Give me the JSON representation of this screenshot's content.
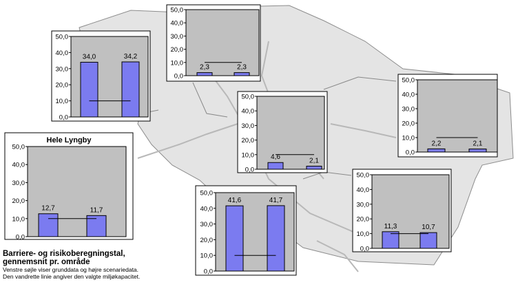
{
  "colors": {
    "bar": "#7b7bf0",
    "plot_area": "#c0c0c0",
    "frame": "#ffffff",
    "map": "#e4e4e4",
    "road": "#b8b8b8"
  },
  "chart_data": [
    {
      "type": "bar",
      "id": "hele-lyngby",
      "title": "Hele Lyngby",
      "categories": [
        "",
        ""
      ],
      "values": [
        12.7,
        11.7
      ],
      "labels": [
        "12,7",
        "11,7"
      ],
      "threshold": 10.0,
      "ylim": [
        0,
        50
      ],
      "yticks": [
        "0,0",
        "10,0",
        "20,0",
        "30,0",
        "40,0",
        "50,0"
      ]
    },
    {
      "type": "bar",
      "id": "area-west",
      "title": "",
      "categories": [
        "",
        ""
      ],
      "values": [
        34.0,
        34.2
      ],
      "labels": [
        "34,0",
        "34,2"
      ],
      "threshold": 10.0,
      "ylim": [
        0,
        50
      ],
      "yticks": [
        "0,0",
        "10,0",
        "20,0",
        "30,0",
        "40,0",
        "50,0"
      ]
    },
    {
      "type": "bar",
      "id": "area-north",
      "title": "",
      "categories": [
        "",
        ""
      ],
      "values": [
        2.3,
        2.3
      ],
      "labels": [
        "2,3",
        "2,3"
      ],
      "threshold": 10.0,
      "ylim": [
        0,
        50
      ],
      "yticks": [
        "0,0",
        "10,0",
        "20,0",
        "30,0",
        "40,0",
        "50,0"
      ]
    },
    {
      "type": "bar",
      "id": "area-center",
      "title": "",
      "categories": [
        "",
        ""
      ],
      "values": [
        4.6,
        2.1
      ],
      "labels": [
        "4,6",
        "2,1"
      ],
      "threshold": 10.0,
      "ylim": [
        0,
        50
      ],
      "yticks": [
        "0,0",
        "10,0",
        "20,0",
        "30,0",
        "40,0",
        "50,0"
      ]
    },
    {
      "type": "bar",
      "id": "area-east",
      "title": "",
      "categories": [
        "",
        ""
      ],
      "values": [
        2.2,
        2.1
      ],
      "labels": [
        "2,2",
        "2,1"
      ],
      "threshold": 10.0,
      "ylim": [
        0,
        50
      ],
      "yticks": [
        "0,0",
        "10,0",
        "20,0",
        "30,0",
        "40,0",
        "50,0"
      ]
    },
    {
      "type": "bar",
      "id": "area-southeast",
      "title": "",
      "categories": [
        "",
        ""
      ],
      "values": [
        11.3,
        10.7
      ],
      "labels": [
        "11,3",
        "10,7"
      ],
      "threshold": 10.0,
      "ylim": [
        0,
        50
      ],
      "yticks": [
        "0,0",
        "10,0",
        "20,0",
        "30,0",
        "40,0",
        "50,0"
      ]
    },
    {
      "type": "bar",
      "id": "area-south",
      "title": "",
      "categories": [
        "",
        ""
      ],
      "values": [
        41.6,
        41.7
      ],
      "labels": [
        "41,6",
        "41,7"
      ],
      "threshold": 10.0,
      "ylim": [
        0,
        50
      ],
      "yticks": [
        "0,0",
        "10,0",
        "20,0",
        "30,0",
        "40,0",
        "50,0"
      ]
    }
  ],
  "caption": {
    "title_line1": "Barriere- og risikoberegningstal,",
    "title_line2": "gennemsnit pr. område",
    "note_line1": "Venstre søjle viser grunddata og højre scenariedata.",
    "note_line2": "Den vandrette linie angiver den valgte miljøkapacitet."
  }
}
